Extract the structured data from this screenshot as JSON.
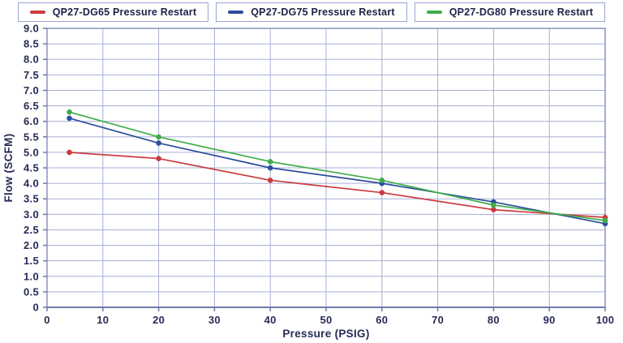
{
  "chart_data": {
    "type": "line",
    "title": "",
    "xlabel": "Pressure (PSIG)",
    "ylabel": "Flow (SCFM)",
    "x": [
      4,
      20,
      40,
      60,
      80,
      100
    ],
    "series": [
      {
        "name": "QP27-DG65 Pressure Restart",
        "color": "#cb3b3e",
        "values": [
          5.0,
          4.8,
          4.1,
          3.7,
          3.15,
          2.9
        ]
      },
      {
        "name": "QP27-DG75 Pressure Restart",
        "color": "#2c4d9c",
        "values": [
          6.1,
          5.3,
          4.5,
          4.0,
          3.4,
          2.7
        ]
      },
      {
        "name": "QP27-DG80 Pressure Restart",
        "color": "#3fae49",
        "values": [
          6.3,
          5.5,
          4.7,
          4.1,
          3.3,
          2.8
        ]
      }
    ],
    "xlim": [
      0,
      100
    ],
    "ylim": [
      0,
      9
    ],
    "x_ticks": [
      0,
      10,
      20,
      30,
      40,
      50,
      60,
      70,
      80,
      90,
      100
    ],
    "y_tick_step": 0.5,
    "y_tick_label_zero": "0",
    "grid": true,
    "legend_position": "top"
  },
  "colors": {
    "grid": "#a7afd4",
    "axis": "#828cba",
    "axis_bottom": "#6f79a8",
    "text": "#272c55",
    "legend_border": "#9ba5cf",
    "background": "#ffffff"
  }
}
